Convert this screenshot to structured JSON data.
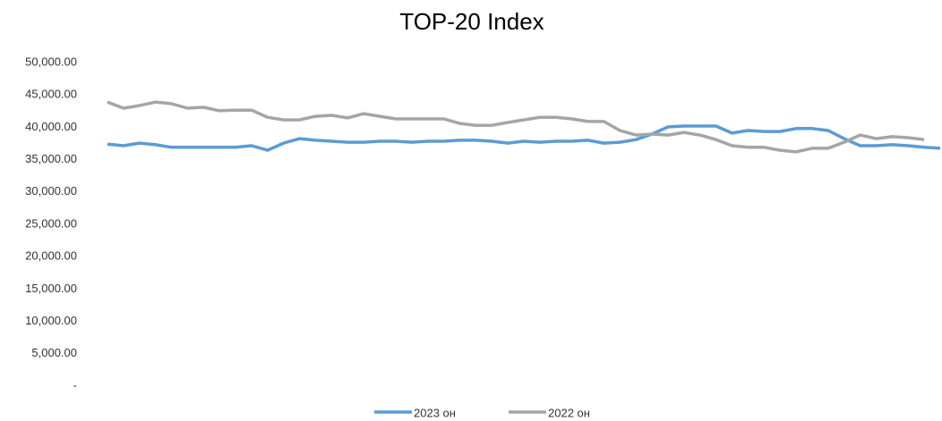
{
  "chart_data": {
    "type": "line",
    "title": "TOP-20 Index",
    "ylim": [
      0,
      50000
    ],
    "yticks": [
      {
        "value": 0,
        "label": "-"
      },
      {
        "value": 5000,
        "label": "5,000.00"
      },
      {
        "value": 10000,
        "label": "10,000.00"
      },
      {
        "value": 15000,
        "label": "15,000.00"
      },
      {
        "value": 20000,
        "label": "20,000.00"
      },
      {
        "value": 25000,
        "label": "25,000.00"
      },
      {
        "value": 30000,
        "label": "30,000.00"
      },
      {
        "value": 35000,
        "label": "35,000.00"
      },
      {
        "value": 40000,
        "label": "40,000.00"
      },
      {
        "value": 45000,
        "label": "45,000.00"
      },
      {
        "value": 50000,
        "label": "50,000.00"
      }
    ],
    "grid": false,
    "legend": "bottom",
    "series": [
      {
        "name": "2023 он",
        "color": "#5b9bd5",
        "values": [
          37400,
          37150,
          37550,
          37300,
          36900,
          36900,
          36900,
          36900,
          36900,
          37150,
          36450,
          37550,
          38250,
          38000,
          37850,
          37700,
          37700,
          37850,
          37850,
          37700,
          37850,
          37850,
          38000,
          38000,
          37850,
          37550,
          37850,
          37700,
          37850,
          37850,
          38000,
          37550,
          37700,
          38100,
          38950,
          40050,
          40200,
          40200,
          40200,
          39100,
          39500,
          39350,
          39350,
          39800,
          39800,
          39500,
          38250,
          37150,
          37150,
          37300,
          37150,
          36900,
          36750
        ]
      },
      {
        "name": "2022 он",
        "color": "#a5a5a5",
        "values": [
          43900,
          42950,
          43350,
          43900,
          43650,
          42950,
          43100,
          42550,
          42650,
          42650,
          41550,
          41150,
          41150,
          41700,
          41850,
          41450,
          42100,
          41700,
          41300,
          41300,
          41300,
          41300,
          40600,
          40300,
          40300,
          40750,
          41150,
          41550,
          41550,
          41300,
          40900,
          40900,
          39500,
          38800,
          38950,
          38800,
          39200,
          38800,
          38100,
          37150,
          36900,
          36900,
          36450,
          36200,
          36750,
          36750,
          37700,
          38800,
          38250,
          38550,
          38400,
          38100,
          null
        ]
      }
    ]
  }
}
